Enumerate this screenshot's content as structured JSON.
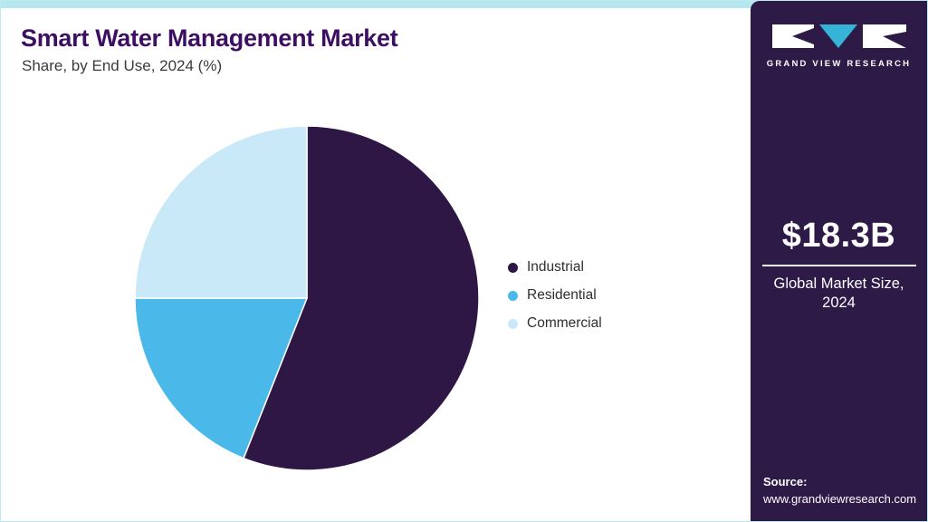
{
  "header": {
    "title": "Smart Water Management Market",
    "subtitle": "Share, by End Use, 2024 (%)"
  },
  "sidebar": {
    "brand": "GRAND VIEW RESEARCH",
    "market_size": "$18.3B",
    "market_size_label": "Global Market Size, 2024",
    "source_label": "Source:",
    "source_url": "www.grandviewresearch.com"
  },
  "chart_data": {
    "type": "pie",
    "title": "Smart Water Management Market Share, by End Use, 2024 (%)",
    "categories": [
      "Industrial",
      "Residential",
      "Commercial"
    ],
    "values": [
      56,
      19,
      25
    ],
    "colors": [
      "#2e1745",
      "#4ab9e9",
      "#c9e9f8"
    ],
    "legend_position": "right",
    "start_angle_deg": 0,
    "direction": "clockwise",
    "data_labels": "none"
  },
  "colors": {
    "topbar": "#b5e8ee",
    "sidebar_bg": "#2e1a47",
    "title_text": "#3d0f63",
    "logo_teal": "#35b4d8",
    "slice_separator": "#ffffff"
  }
}
